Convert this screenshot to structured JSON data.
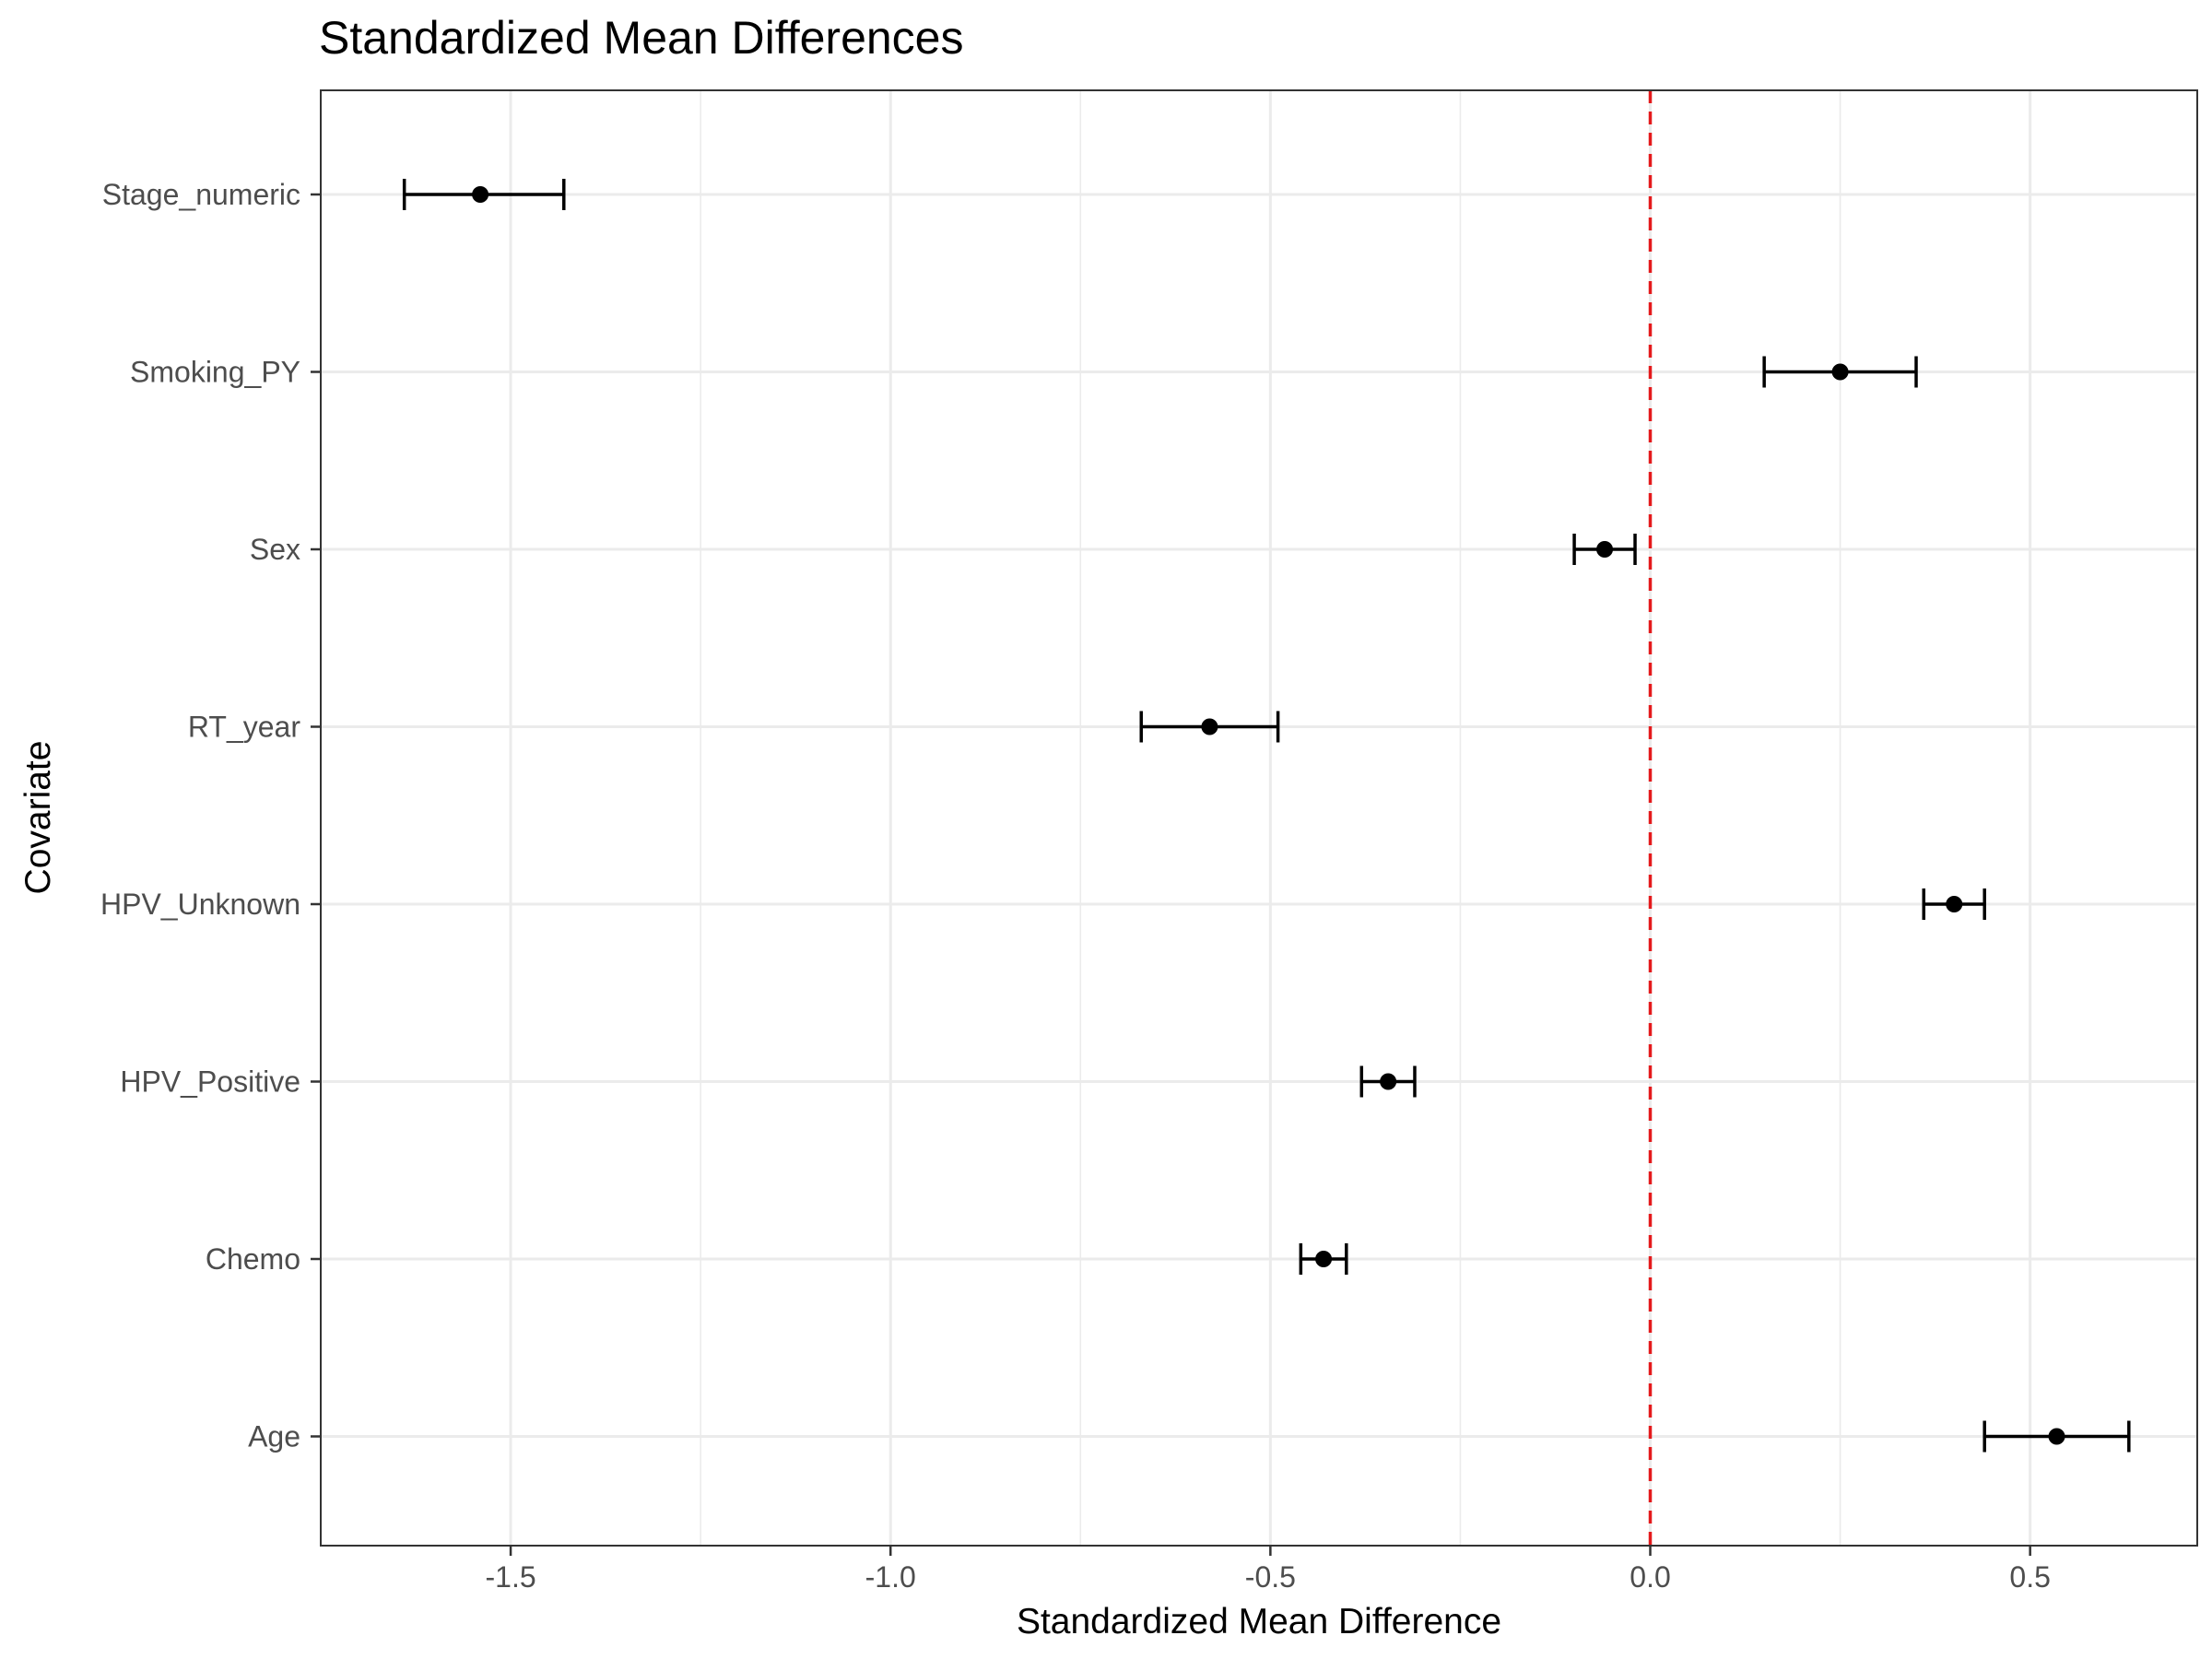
{
  "chart_data": {
    "type": "scatter",
    "subtype": "forest-plot-with-error-bars",
    "title": "Standardized Mean Differences",
    "xlabel": "Standardized Mean Difference",
    "ylabel": "Covariate",
    "xlim": [
      -1.75,
      0.72
    ],
    "x_ticks": [
      -1.5,
      -1.0,
      -0.5,
      0.0,
      0.5
    ],
    "x_tick_labels": [
      "-1.5",
      "-1.0",
      "-0.5",
      "0.0",
      "0.5"
    ],
    "categories": [
      "Stage_numeric",
      "Smoking_PY",
      "Sex",
      "RT_year",
      "HPV_Unknown",
      "HPV_Positive",
      "Chemo",
      "Age"
    ],
    "series": [
      {
        "values": [
          -1.54,
          0.25,
          -0.06,
          -0.58,
          0.4,
          -0.345,
          -0.43,
          0.535
        ],
        "lower": [
          -1.64,
          0.15,
          -0.1,
          -0.67,
          0.36,
          -0.38,
          -0.46,
          0.44
        ],
        "upper": [
          -1.43,
          0.35,
          -0.02,
          -0.49,
          0.44,
          -0.31,
          -0.4,
          0.63
        ],
        "color": "#000000"
      }
    ],
    "reference_line": {
      "x": 0.0,
      "color": "#e41a1c",
      "style": "dashed"
    },
    "grid": true,
    "legend": "none",
    "panel_border_color": "#333333",
    "grid_color": "#ebebeb"
  }
}
